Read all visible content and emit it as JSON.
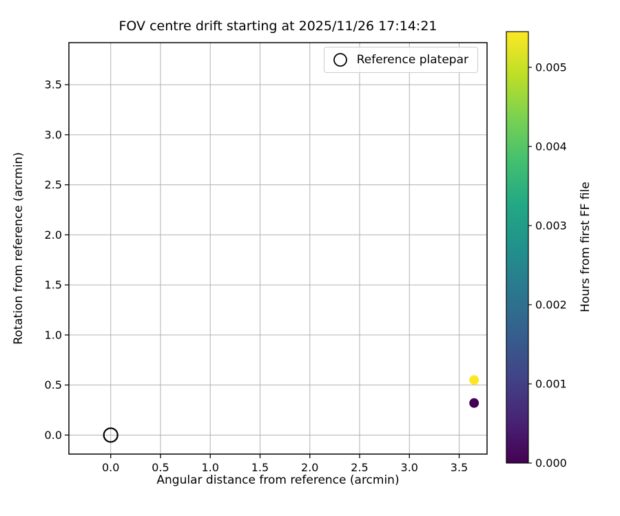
{
  "chart_data": {
    "type": "scatter",
    "title": "FOV centre drift starting at 2025/11/26 17:14:21",
    "xlabel": "Angular distance from reference (arcmin)",
    "ylabel": "Rotation from reference (arcmin)",
    "xlim": [
      -0.42,
      3.78
    ],
    "ylim": [
      -0.19,
      3.92
    ],
    "xticks": [
      0.0,
      0.5,
      1.0,
      1.5,
      2.0,
      2.5,
      3.0,
      3.5
    ],
    "xtick_labels": [
      "0.0",
      "0.5",
      "1.0",
      "1.5",
      "2.0",
      "2.5",
      "3.0",
      "3.5"
    ],
    "yticks": [
      0.0,
      0.5,
      1.0,
      1.5,
      2.0,
      2.5,
      3.0,
      3.5
    ],
    "ytick_labels": [
      "0.0",
      "0.5",
      "1.0",
      "1.5",
      "2.0",
      "2.5",
      "3.0",
      "3.5"
    ],
    "grid": true,
    "legend": {
      "position": "upper right",
      "entries": [
        {
          "label": "Reference platepar",
          "marker": "open-circle"
        }
      ]
    },
    "reference_point": {
      "x": 0.0,
      "y": 0.0
    },
    "series": [
      {
        "name": "FOV centre drift points",
        "points": [
          {
            "x": 3.65,
            "y": 0.32,
            "hours": 0.0
          },
          {
            "x": 3.65,
            "y": 0.55,
            "hours": 0.00545
          }
        ]
      }
    ],
    "colorbar": {
      "label": "Hours from first FF file",
      "vmin": 0.0,
      "vmax": 0.00545,
      "tick_values": [
        0.0,
        0.001,
        0.002,
        0.003,
        0.004,
        0.005
      ],
      "tick_labels": [
        "0.000",
        "0.001",
        "0.002",
        "0.003",
        "0.004",
        "0.005"
      ],
      "colormap": "viridis"
    }
  },
  "style": {
    "background": "#ffffff",
    "axis_color": "#000000",
    "grid_color": "#b0b0b0",
    "legend_border_color": "#cccccc",
    "viridis_stops": [
      "#440154",
      "#482475",
      "#414487",
      "#355f8d",
      "#2a788e",
      "#21918c",
      "#22a884",
      "#44bf70",
      "#7ad151",
      "#bddf26",
      "#fde725"
    ]
  }
}
